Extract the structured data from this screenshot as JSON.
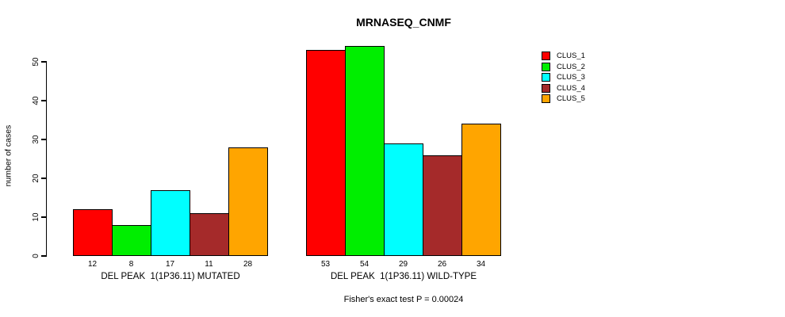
{
  "chart_data": {
    "type": "bar",
    "title": "MRNASEQ_CNMF",
    "subtitle": "Fisher's exact test P = 0.00024",
    "ylabel": "number of cases",
    "xlabel": "",
    "ylim": [
      0,
      50
    ],
    "yticks": [
      0,
      10,
      20,
      30,
      40,
      50
    ],
    "grid": false,
    "legend_position": "right",
    "categories": [
      "DEL PEAK  1(1P36.11) MUTATED",
      "DEL PEAK  1(1P36.11) WILD-TYPE"
    ],
    "series": [
      {
        "name": "CLUS_1",
        "color": "#ff0000",
        "values": [
          12,
          53
        ]
      },
      {
        "name": "CLUS_2",
        "color": "#00ee00",
        "values": [
          8,
          54
        ]
      },
      {
        "name": "CLUS_3",
        "color": "#00ffff",
        "values": [
          17,
          29
        ]
      },
      {
        "name": "CLUS_4",
        "color": "#a52a2a",
        "values": [
          11,
          26
        ]
      },
      {
        "name": "CLUS_5",
        "color": "#ffa500",
        "values": [
          28,
          34
        ]
      }
    ],
    "bar_border_color": "#000000",
    "axis_color": "#000000"
  }
}
